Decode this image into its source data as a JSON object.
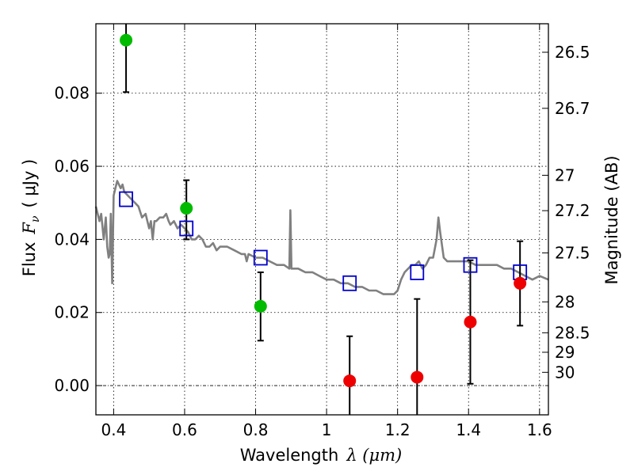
{
  "chart_data": {
    "type": "scatter",
    "xlabel": "Wavelength",
    "xlabel_math": "λ (μm)",
    "ylabel": "Flux",
    "ylabel_math": "F",
    "ylabel_math_sub": "ν",
    "ylabel_units": "( μJy )",
    "y2label": "Magnitude (AB)",
    "xlim": [
      0.35,
      1.625
    ],
    "ylim": [
      -0.008,
      0.099
    ],
    "grid": true,
    "x_ticks": [
      0.4,
      0.6,
      0.8,
      1.0,
      1.2,
      1.4,
      1.6
    ],
    "x_tick_labels": [
      "0.4",
      "0.6",
      "0.8",
      "1",
      "1.2",
      "1.4",
      "1.6"
    ],
    "y_ticks": [
      0.0,
      0.02,
      0.04,
      0.06,
      0.08
    ],
    "y_tick_labels": [
      "0.00",
      "0.02",
      "0.04",
      "0.06",
      "0.08"
    ],
    "y2_ticks": [
      {
        "label": "26.5",
        "value": 26.5
      },
      {
        "label": "26.7",
        "value": 26.7
      },
      {
        "label": "27",
        "value": 27.0
      },
      {
        "label": "27.2",
        "value": 27.2
      },
      {
        "label": "27.5",
        "value": 27.5
      },
      {
        "label": "28",
        "value": 28.0
      },
      {
        "label": "28.5",
        "value": 28.5
      },
      {
        "label": "29",
        "value": 29.0
      },
      {
        "label": "30",
        "value": 30.0
      }
    ],
    "series": [
      {
        "color": "#808080",
        "marker": "line",
        "points": [
          [
            0.35,
            0.049
          ],
          [
            0.36,
            0.045
          ],
          [
            0.365,
            0.047
          ],
          [
            0.372,
            0.04
          ],
          [
            0.378,
            0.046
          ],
          [
            0.382,
            0.038
          ],
          [
            0.386,
            0.035
          ],
          [
            0.389,
            0.036
          ],
          [
            0.392,
            0.047
          ],
          [
            0.396,
            0.028
          ],
          [
            0.4,
            0.052
          ],
          [
            0.405,
            0.054
          ],
          [
            0.41,
            0.056
          ],
          [
            0.42,
            0.054
          ],
          [
            0.425,
            0.055
          ],
          [
            0.43,
            0.053
          ],
          [
            0.44,
            0.052
          ],
          [
            0.45,
            0.051
          ],
          [
            0.46,
            0.05
          ],
          [
            0.47,
            0.049
          ],
          [
            0.48,
            0.046
          ],
          [
            0.49,
            0.047
          ],
          [
            0.5,
            0.043
          ],
          [
            0.505,
            0.045
          ],
          [
            0.51,
            0.04
          ],
          [
            0.515,
            0.045
          ],
          [
            0.52,
            0.045
          ],
          [
            0.53,
            0.046
          ],
          [
            0.54,
            0.046
          ],
          [
            0.548,
            0.047
          ],
          [
            0.555,
            0.045
          ],
          [
            0.56,
            0.044
          ],
          [
            0.57,
            0.045
          ],
          [
            0.58,
            0.043
          ],
          [
            0.59,
            0.044
          ],
          [
            0.6,
            0.043
          ],
          [
            0.61,
            0.042
          ],
          [
            0.62,
            0.04
          ],
          [
            0.63,
            0.04
          ],
          [
            0.64,
            0.041
          ],
          [
            0.65,
            0.04
          ],
          [
            0.66,
            0.038
          ],
          [
            0.67,
            0.038
          ],
          [
            0.68,
            0.039
          ],
          [
            0.69,
            0.037
          ],
          [
            0.7,
            0.038
          ],
          [
            0.72,
            0.038
          ],
          [
            0.74,
            0.037
          ],
          [
            0.76,
            0.036
          ],
          [
            0.77,
            0.036
          ],
          [
            0.775,
            0.034
          ],
          [
            0.78,
            0.036
          ],
          [
            0.8,
            0.035
          ],
          [
            0.82,
            0.035
          ],
          [
            0.84,
            0.034
          ],
          [
            0.86,
            0.033
          ],
          [
            0.88,
            0.033
          ],
          [
            0.895,
            0.032
          ],
          [
            0.898,
            0.048
          ],
          [
            0.901,
            0.032
          ],
          [
            0.92,
            0.032
          ],
          [
            0.94,
            0.031
          ],
          [
            0.96,
            0.031
          ],
          [
            0.98,
            0.03
          ],
          [
            1.0,
            0.029
          ],
          [
            1.02,
            0.029
          ],
          [
            1.04,
            0.028
          ],
          [
            1.06,
            0.028
          ],
          [
            1.08,
            0.027
          ],
          [
            1.1,
            0.027
          ],
          [
            1.12,
            0.026
          ],
          [
            1.14,
            0.026
          ],
          [
            1.16,
            0.025
          ],
          [
            1.18,
            0.025
          ],
          [
            1.19,
            0.025
          ],
          [
            1.2,
            0.026
          ],
          [
            1.21,
            0.029
          ],
          [
            1.22,
            0.031
          ],
          [
            1.23,
            0.032
          ],
          [
            1.24,
            0.033
          ],
          [
            1.25,
            0.033
          ],
          [
            1.26,
            0.034
          ],
          [
            1.27,
            0.032
          ],
          [
            1.28,
            0.033
          ],
          [
            1.29,
            0.035
          ],
          [
            1.3,
            0.035
          ],
          [
            1.31,
            0.04
          ],
          [
            1.315,
            0.046
          ],
          [
            1.32,
            0.042
          ],
          [
            1.33,
            0.035
          ],
          [
            1.34,
            0.034
          ],
          [
            1.36,
            0.034
          ],
          [
            1.38,
            0.034
          ],
          [
            1.4,
            0.034
          ],
          [
            1.42,
            0.033
          ],
          [
            1.44,
            0.033
          ],
          [
            1.46,
            0.033
          ],
          [
            1.48,
            0.033
          ],
          [
            1.5,
            0.032
          ],
          [
            1.52,
            0.032
          ],
          [
            1.54,
            0.031
          ],
          [
            1.56,
            0.03
          ],
          [
            1.58,
            0.029
          ],
          [
            1.6,
            0.03
          ],
          [
            1.625,
            0.029
          ]
        ]
      },
      {
        "color": "#0000cc",
        "marker": "open-square",
        "points": [
          [
            0.435,
            0.051
          ],
          [
            0.605,
            0.043
          ],
          [
            0.814,
            0.035
          ],
          [
            1.065,
            0.028
          ],
          [
            1.255,
            0.031
          ],
          [
            1.405,
            0.033
          ],
          [
            1.545,
            0.031
          ]
        ]
      },
      {
        "color": "#00bb00",
        "marker": "filled-circle",
        "points": [
          {
            "x": 0.435,
            "y": 0.0945,
            "err_lo": 0.0803,
            "err_hi": 0.099
          },
          {
            "x": 0.605,
            "y": 0.0485,
            "err_lo": 0.04,
            "err_hi": 0.0562
          },
          {
            "x": 0.814,
            "y": 0.0217,
            "err_lo": 0.0123,
            "err_hi": 0.031
          }
        ]
      },
      {
        "color": "#ee0000",
        "marker": "filled-circle",
        "points": [
          {
            "x": 1.065,
            "y": 0.0013,
            "err_lo": -0.008,
            "err_hi": 0.0135
          },
          {
            "x": 1.255,
            "y": 0.0023,
            "err_lo": -0.008,
            "err_hi": 0.0237
          },
          {
            "x": 1.405,
            "y": 0.0174,
            "err_lo": 0.0005,
            "err_hi": 0.0343
          },
          {
            "x": 1.545,
            "y": 0.028,
            "err_lo": 0.0164,
            "err_hi": 0.0395
          }
        ]
      }
    ]
  }
}
